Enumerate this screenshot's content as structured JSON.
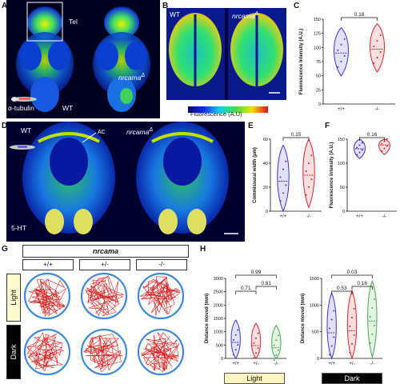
{
  "panelA": {
    "letter": "A",
    "tel_label": "Tel",
    "stain": "α-tubulin",
    "wt": "WT",
    "mut": "nrcama"
  },
  "panelB": {
    "letter": "B",
    "wt": "WT",
    "mut": "nrcama",
    "colorbar_label": "Fluorescence (A.U)"
  },
  "panelD": {
    "letter": "D",
    "wt": "WT",
    "mut": "nrcama",
    "ac": "AC",
    "stain": "5-HT"
  },
  "panelG": {
    "letter": "G",
    "gene": "nrcama",
    "genotypes": [
      "+/+",
      "+/-",
      "-/-"
    ],
    "rows": [
      "Light",
      "Dark"
    ]
  },
  "chart_data": [
    {
      "id": "C",
      "type": "violin",
      "ylabel": "Fluorescence Intensity (A.U.)",
      "ylim": [
        0,
        150
      ],
      "yticks": [
        0,
        25,
        50,
        75,
        100,
        125,
        150
      ],
      "categories": [
        "+/+",
        "-/-"
      ],
      "colors": [
        "#3a35c8",
        "#d4262c"
      ],
      "medians": [
        90,
        97
      ],
      "pvalue": "0.18"
    },
    {
      "id": "E",
      "type": "violin",
      "ylabel": "Commissural width (µm)",
      "ylim": [
        0,
        60
      ],
      "yticks": [
        0,
        20,
        40,
        60
      ],
      "categories": [
        "+/+",
        "-/-"
      ],
      "colors": [
        "#3a35c8",
        "#d4262c"
      ],
      "medians": [
        25,
        30
      ],
      "pvalue": "0.15"
    },
    {
      "id": "F",
      "type": "violin",
      "ylabel": "Fluorescence intensity (A.U.)",
      "ylim": [
        0,
        150
      ],
      "yticks": [
        0,
        50,
        100,
        150
      ],
      "categories": [
        "+/+",
        "-/-"
      ],
      "colors": [
        "#3a35c8",
        "#d4262c"
      ],
      "medians": [
        130,
        138
      ],
      "pvalue": "0.16"
    },
    {
      "id": "H1",
      "letter": "H",
      "type": "violin",
      "ylabel": "Distance moved (mm)",
      "ylim": [
        0,
        3000
      ],
      "yticks": [
        0,
        500,
        1000,
        1500,
        2000,
        2500,
        3000
      ],
      "categories": [
        "+/+",
        "+/-",
        "-/-"
      ],
      "colors": [
        "#3a35c8",
        "#d4262c",
        "#4aa84a"
      ],
      "medians": [
        600,
        480,
        400
      ],
      "pvalues": [
        "0.99",
        "0.71",
        "0.81"
      ],
      "condition": "Light"
    },
    {
      "id": "H2",
      "type": "violin",
      "ylabel": "Distance moved (mm)",
      "ylim": [
        0,
        1500
      ],
      "yticks": [
        0,
        500,
        1000,
        1500
      ],
      "categories": [
        "+/+",
        "+/-",
        "-/-"
      ],
      "colors": [
        "#3a35c8",
        "#d4262c",
        "#4aa84a"
      ],
      "medians": [
        480,
        520,
        700
      ],
      "pvalues": [
        "0.03",
        "0.53",
        "0.16"
      ],
      "condition": "Dark"
    }
  ]
}
